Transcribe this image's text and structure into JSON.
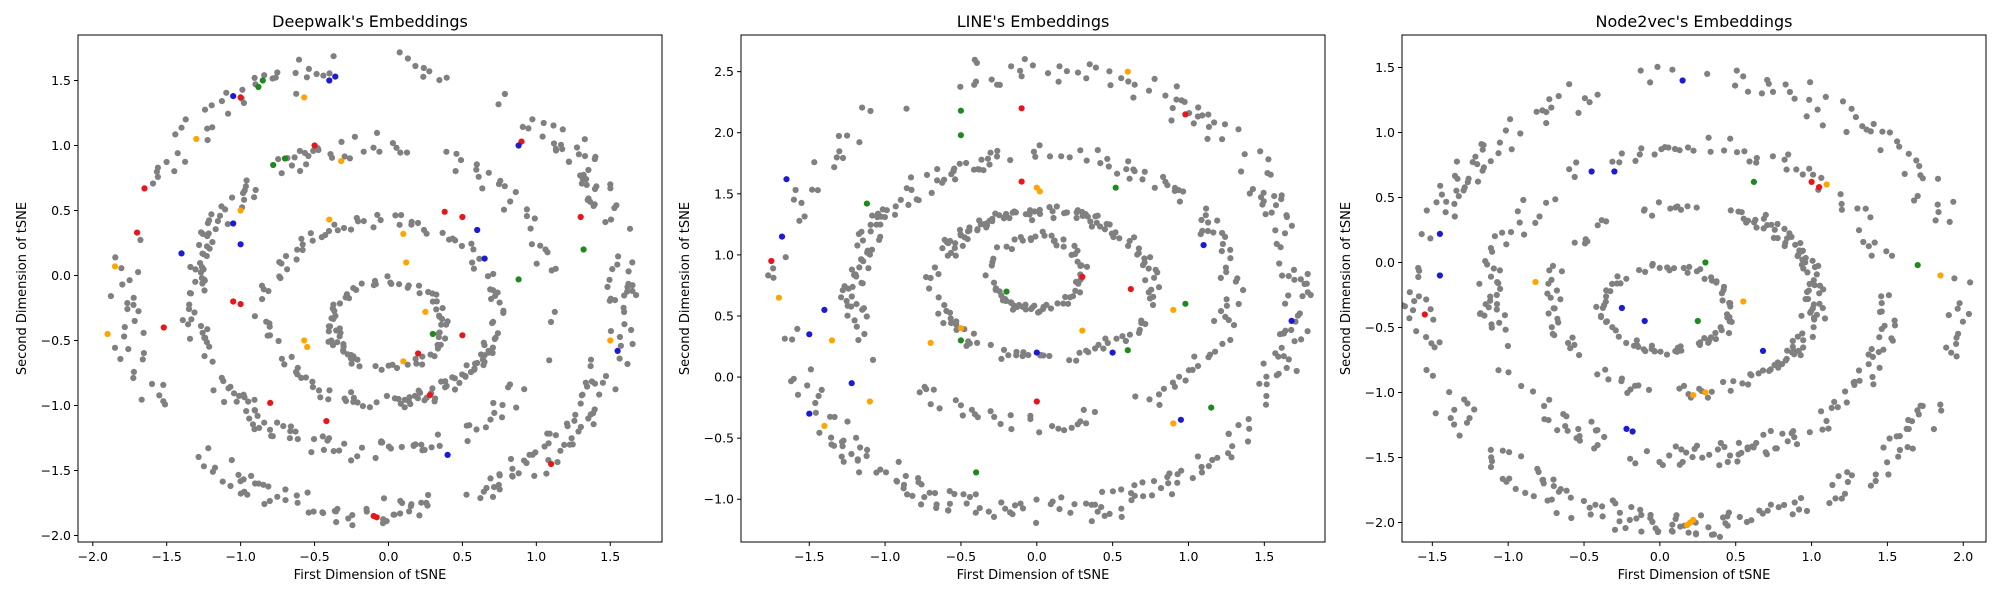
{
  "chart_data": [
    {
      "type": "scatter",
      "title": "Deepwalk's Embeddings",
      "xlabel": "First Dimension of tSNE",
      "ylabel": "Second Dimension of tSNE",
      "xlim": [
        -2.1,
        1.85
      ],
      "ylim": [
        -2.05,
        1.85
      ],
      "xticks": [
        -2.0,
        -1.5,
        -1.0,
        -0.5,
        0.0,
        0.5,
        1.0,
        1.5
      ],
      "yticks": [
        -2.0,
        -1.5,
        -1.0,
        -0.5,
        0.0,
        0.5,
        1.0,
        1.5
      ],
      "grid": false,
      "legend": "none",
      "series_colors": {
        "base": "#808080",
        "red": "#e8161b",
        "blue": "#1b1bd6",
        "green": "#1e8a1e",
        "orange": "#ffa500"
      },
      "rings": [
        {
          "cx": -0.1,
          "cy": -0.1,
          "rx": 1.7,
          "ry": 1.72,
          "n": 260
        },
        {
          "cx": -0.1,
          "cy": -0.18,
          "rx": 1.22,
          "ry": 1.18,
          "n": 190
        },
        {
          "cx": -0.05,
          "cy": -0.28,
          "rx": 0.78,
          "ry": 0.7,
          "n": 140
        },
        {
          "cx": 0.0,
          "cy": -0.38,
          "rx": 0.38,
          "ry": 0.34,
          "n": 80
        }
      ],
      "highlights": [
        {
          "x": -1.05,
          "y": 1.38,
          "c": "blue"
        },
        {
          "x": -1.0,
          "y": 1.37,
          "c": "red"
        },
        {
          "x": -0.85,
          "y": 1.5,
          "c": "green"
        },
        {
          "x": -0.88,
          "y": 1.45,
          "c": "green"
        },
        {
          "x": -0.57,
          "y": 1.37,
          "c": "orange"
        },
        {
          "x": -0.4,
          "y": 1.5,
          "c": "blue"
        },
        {
          "x": -0.36,
          "y": 1.53,
          "c": "blue"
        },
        {
          "x": -1.3,
          "y": 1.05,
          "c": "orange"
        },
        {
          "x": -0.7,
          "y": 0.9,
          "c": "green"
        },
        {
          "x": -0.78,
          "y": 0.85,
          "c": "green"
        },
        {
          "x": -0.5,
          "y": 1.0,
          "c": "red"
        },
        {
          "x": -0.32,
          "y": 0.88,
          "c": "orange"
        },
        {
          "x": -1.65,
          "y": 0.67,
          "c": "red"
        },
        {
          "x": -1.7,
          "y": 0.33,
          "c": "red"
        },
        {
          "x": -1.0,
          "y": 0.5,
          "c": "orange"
        },
        {
          "x": -1.05,
          "y": 0.4,
          "c": "blue"
        },
        {
          "x": -1.4,
          "y": 0.17,
          "c": "blue"
        },
        {
          "x": -1.85,
          "y": 0.07,
          "c": "orange"
        },
        {
          "x": -1.0,
          "y": 0.24,
          "c": "blue"
        },
        {
          "x": -0.4,
          "y": 0.43,
          "c": "orange"
        },
        {
          "x": 0.1,
          "y": 0.32,
          "c": "orange"
        },
        {
          "x": 0.12,
          "y": 0.1,
          "c": "orange"
        },
        {
          "x": 0.38,
          "y": 0.49,
          "c": "red"
        },
        {
          "x": 0.5,
          "y": 0.45,
          "c": "red"
        },
        {
          "x": 0.6,
          "y": 0.35,
          "c": "blue"
        },
        {
          "x": 0.65,
          "y": 0.13,
          "c": "blue"
        },
        {
          "x": 0.9,
          "y": 1.03,
          "c": "red"
        },
        {
          "x": 0.88,
          "y": 1.0,
          "c": "blue"
        },
        {
          "x": 1.3,
          "y": 0.45,
          "c": "red"
        },
        {
          "x": 1.32,
          "y": 0.2,
          "c": "green"
        },
        {
          "x": 0.88,
          "y": -0.03,
          "c": "green"
        },
        {
          "x": -1.05,
          "y": -0.2,
          "c": "red"
        },
        {
          "x": -1.0,
          "y": -0.22,
          "c": "red"
        },
        {
          "x": -1.52,
          "y": -0.4,
          "c": "red"
        },
        {
          "x": -1.9,
          "y": -0.45,
          "c": "orange"
        },
        {
          "x": -0.55,
          "y": -0.55,
          "c": "orange"
        },
        {
          "x": -0.57,
          "y": -0.5,
          "c": "orange"
        },
        {
          "x": 0.25,
          "y": -0.28,
          "c": "orange"
        },
        {
          "x": 0.3,
          "y": -0.45,
          "c": "green"
        },
        {
          "x": 0.2,
          "y": -0.6,
          "c": "red"
        },
        {
          "x": 0.1,
          "y": -0.66,
          "c": "orange"
        },
        {
          "x": 0.5,
          "y": -0.46,
          "c": "red"
        },
        {
          "x": 0.28,
          "y": -0.92,
          "c": "red"
        },
        {
          "x": 1.55,
          "y": -0.58,
          "c": "blue"
        },
        {
          "x": 1.5,
          "y": -0.5,
          "c": "orange"
        },
        {
          "x": -0.8,
          "y": -0.98,
          "c": "red"
        },
        {
          "x": -0.42,
          "y": -1.12,
          "c": "red"
        },
        {
          "x": -0.1,
          "y": -1.85,
          "c": "red"
        },
        {
          "x": -0.08,
          "y": -1.86,
          "c": "red"
        },
        {
          "x": 1.1,
          "y": -1.45,
          "c": "red"
        },
        {
          "x": 0.4,
          "y": -1.38,
          "c": "blue"
        }
      ]
    },
    {
      "type": "scatter",
      "title": "LINE's Embeddings",
      "xlabel": "First Dimension of tSNE",
      "ylabel": "Second Dimension of tSNE",
      "xlim": [
        -1.95,
        1.9
      ],
      "ylim": [
        -1.35,
        2.8
      ],
      "xticks": [
        -1.5,
        -1.0,
        -0.5,
        0.0,
        0.5,
        1.0,
        1.5
      ],
      "yticks": [
        -1.0,
        -0.5,
        0.0,
        0.5,
        1.0,
        1.5,
        2.0,
        2.5
      ],
      "grid": false,
      "legend": "none",
      "series_colors": {
        "base": "#808080",
        "red": "#e8161b",
        "blue": "#1b1bd6",
        "green": "#1e8a1e",
        "orange": "#ffa500"
      },
      "rings": [
        {
          "cx": 0.0,
          "cy": 0.7,
          "rx": 1.72,
          "ry": 1.82,
          "n": 260
        },
        {
          "cx": 0.05,
          "cy": 0.72,
          "rx": 1.25,
          "ry": 1.1,
          "n": 190
        },
        {
          "cx": 0.05,
          "cy": 0.75,
          "rx": 0.72,
          "ry": 0.6,
          "n": 150
        },
        {
          "cx": 0.0,
          "cy": 0.85,
          "rx": 0.3,
          "ry": 0.3,
          "n": 70
        }
      ],
      "highlights": [
        {
          "x": -1.65,
          "y": 1.62,
          "c": "blue"
        },
        {
          "x": -1.68,
          "y": 1.15,
          "c": "blue"
        },
        {
          "x": -1.75,
          "y": 0.95,
          "c": "red"
        },
        {
          "x": -1.7,
          "y": 0.65,
          "c": "orange"
        },
        {
          "x": -1.12,
          "y": 1.42,
          "c": "green"
        },
        {
          "x": -0.5,
          "y": 2.18,
          "c": "green"
        },
        {
          "x": -0.5,
          "y": 1.98,
          "c": "green"
        },
        {
          "x": -0.1,
          "y": 2.2,
          "c": "red"
        },
        {
          "x": 0.6,
          "y": 2.5,
          "c": "orange"
        },
        {
          "x": 0.98,
          "y": 2.15,
          "c": "red"
        },
        {
          "x": -0.1,
          "y": 1.6,
          "c": "red"
        },
        {
          "x": 0.0,
          "y": 1.55,
          "c": "orange"
        },
        {
          "x": 0.02,
          "y": 1.52,
          "c": "orange"
        },
        {
          "x": 0.52,
          "y": 1.55,
          "c": "green"
        },
        {
          "x": -1.4,
          "y": 0.55,
          "c": "blue"
        },
        {
          "x": -1.5,
          "y": 0.35,
          "c": "blue"
        },
        {
          "x": -1.35,
          "y": 0.3,
          "c": "orange"
        },
        {
          "x": -0.7,
          "y": 0.28,
          "c": "orange"
        },
        {
          "x": -0.5,
          "y": 0.4,
          "c": "orange"
        },
        {
          "x": -0.5,
          "y": 0.3,
          "c": "green"
        },
        {
          "x": -0.2,
          "y": 0.7,
          "c": "green"
        },
        {
          "x": 0.3,
          "y": 0.82,
          "c": "red"
        },
        {
          "x": 0.62,
          "y": 0.72,
          "c": "red"
        },
        {
          "x": 0.9,
          "y": 0.55,
          "c": "orange"
        },
        {
          "x": 0.98,
          "y": 0.6,
          "c": "green"
        },
        {
          "x": 1.1,
          "y": 1.08,
          "c": "blue"
        },
        {
          "x": 0.0,
          "y": 0.2,
          "c": "blue"
        },
        {
          "x": 0.5,
          "y": 0.2,
          "c": "blue"
        },
        {
          "x": 0.6,
          "y": 0.22,
          "c": "green"
        },
        {
          "x": 0.3,
          "y": 0.38,
          "c": "orange"
        },
        {
          "x": -1.5,
          "y": -0.3,
          "c": "blue"
        },
        {
          "x": -1.4,
          "y": -0.4,
          "c": "orange"
        },
        {
          "x": -1.22,
          "y": -0.05,
          "c": "blue"
        },
        {
          "x": -1.1,
          "y": -0.2,
          "c": "orange"
        },
        {
          "x": -0.4,
          "y": -0.78,
          "c": "green"
        },
        {
          "x": 0.0,
          "y": -0.2,
          "c": "red"
        },
        {
          "x": 0.95,
          "y": -0.35,
          "c": "blue"
        },
        {
          "x": 0.9,
          "y": -0.38,
          "c": "orange"
        },
        {
          "x": 1.15,
          "y": -0.25,
          "c": "green"
        },
        {
          "x": 1.68,
          "y": 0.46,
          "c": "blue"
        }
      ]
    },
    {
      "type": "scatter",
      "title": "Node2vec's Embeddings",
      "xlabel": "First Dimension of tSNE",
      "ylabel": "Second Dimension of tSNE",
      "xlim": [
        -1.7,
        2.15
      ],
      "ylim": [
        -2.15,
        1.75
      ],
      "xticks": [
        -1.5,
        -1.0,
        -0.5,
        0.0,
        0.5,
        1.0,
        1.5,
        2.0
      ],
      "yticks": [
        -2.0,
        -1.5,
        -1.0,
        -0.5,
        0.0,
        0.5,
        1.0,
        1.5
      ],
      "grid": false,
      "legend": "none",
      "series_colors": {
        "base": "#808080",
        "red": "#e8161b",
        "blue": "#1b1bd6",
        "green": "#1e8a1e",
        "orange": "#ffa500"
      },
      "rings": [
        {
          "cx": 0.2,
          "cy": -0.3,
          "rx": 1.78,
          "ry": 1.72,
          "n": 260
        },
        {
          "cx": 0.2,
          "cy": -0.3,
          "rx": 1.32,
          "ry": 1.2,
          "n": 190
        },
        {
          "cx": 0.15,
          "cy": -0.28,
          "rx": 0.88,
          "ry": 0.72,
          "n": 150
        },
        {
          "cx": 0.05,
          "cy": -0.35,
          "rx": 0.42,
          "ry": 0.32,
          "n": 80
        }
      ],
      "highlights": [
        {
          "x": 0.15,
          "y": 1.4,
          "c": "blue"
        },
        {
          "x": 1.0,
          "y": 0.62,
          "c": "red"
        },
        {
          "x": 1.05,
          "y": 0.58,
          "c": "red"
        },
        {
          "x": 1.1,
          "y": 0.6,
          "c": "orange"
        },
        {
          "x": 0.62,
          "y": 0.62,
          "c": "green"
        },
        {
          "x": -1.45,
          "y": 0.22,
          "c": "blue"
        },
        {
          "x": -1.45,
          "y": -0.1,
          "c": "blue"
        },
        {
          "x": -1.55,
          "y": -0.4,
          "c": "red"
        },
        {
          "x": -0.82,
          "y": -0.15,
          "c": "orange"
        },
        {
          "x": -0.45,
          "y": 0.7,
          "c": "blue"
        },
        {
          "x": -0.3,
          "y": 0.7,
          "c": "blue"
        },
        {
          "x": -0.25,
          "y": -0.35,
          "c": "blue"
        },
        {
          "x": -0.1,
          "y": -0.45,
          "c": "blue"
        },
        {
          "x": 0.25,
          "y": -0.45,
          "c": "green"
        },
        {
          "x": 0.3,
          "y": 0.0,
          "c": "green"
        },
        {
          "x": 0.55,
          "y": -0.3,
          "c": "orange"
        },
        {
          "x": 1.7,
          "y": -0.02,
          "c": "green"
        },
        {
          "x": 1.85,
          "y": -0.1,
          "c": "orange"
        },
        {
          "x": -0.22,
          "y": -1.28,
          "c": "blue"
        },
        {
          "x": -0.18,
          "y": -1.3,
          "c": "blue"
        },
        {
          "x": 0.22,
          "y": -1.02,
          "c": "orange"
        },
        {
          "x": 0.3,
          "y": -1.0,
          "c": "orange"
        },
        {
          "x": 0.68,
          "y": -0.68,
          "c": "blue"
        },
        {
          "x": 0.2,
          "y": -2.0,
          "c": "orange"
        },
        {
          "x": 0.18,
          "y": -2.02,
          "c": "orange"
        },
        {
          "x": 0.22,
          "y": -1.98,
          "c": "orange"
        }
      ]
    }
  ]
}
